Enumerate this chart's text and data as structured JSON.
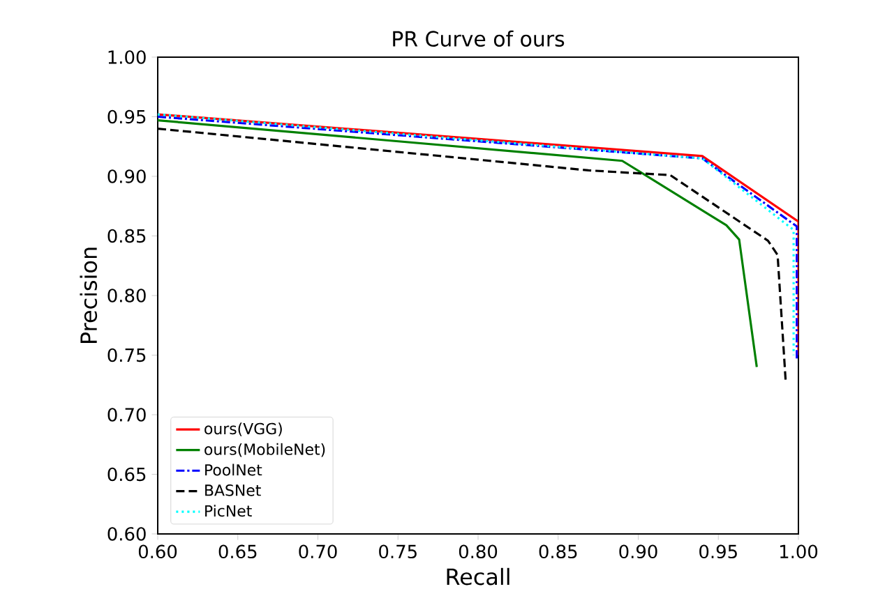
{
  "chart_data": {
    "type": "line",
    "title": "PR Curve of ours",
    "xlabel": "Recall",
    "ylabel": "Precision",
    "xlim": [
      0.6,
      1.0
    ],
    "ylim": [
      0.6,
      1.0
    ],
    "xticks": [
      {
        "value": 0.6,
        "label": "0.60"
      },
      {
        "value": 0.65,
        "label": "0.65"
      },
      {
        "value": 0.7,
        "label": "0.70"
      },
      {
        "value": 0.75,
        "label": "0.75"
      },
      {
        "value": 0.8,
        "label": "0.80"
      },
      {
        "value": 0.85,
        "label": "0.85"
      },
      {
        "value": 0.9,
        "label": "0.90"
      },
      {
        "value": 0.95,
        "label": "0.95"
      },
      {
        "value": 1.0,
        "label": "1.00"
      }
    ],
    "yticks": [
      {
        "value": 0.6,
        "label": "0.60"
      },
      {
        "value": 0.65,
        "label": "0.65"
      },
      {
        "value": 0.7,
        "label": "0.70"
      },
      {
        "value": 0.75,
        "label": "0.75"
      },
      {
        "value": 0.8,
        "label": "0.80"
      },
      {
        "value": 0.85,
        "label": "0.85"
      },
      {
        "value": 0.9,
        "label": "0.90"
      },
      {
        "value": 0.95,
        "label": "0.95"
      },
      {
        "value": 1.0,
        "label": "1.00"
      }
    ],
    "grid": false,
    "legend": "bottom left",
    "marker": "none",
    "series": [
      {
        "name": "ours(VGG)",
        "color": "#ff0000",
        "line_style": "solid",
        "x": [
          0.6,
          0.94,
          1.0,
          1.0
        ],
        "values": [
          0.952,
          0.917,
          0.862,
          0.75
        ]
      },
      {
        "name": "ours(MobileNet)",
        "color": "#008000",
        "line_style": "solid",
        "x": [
          0.6,
          0.89,
          0.955,
          0.963,
          0.974
        ],
        "values": [
          0.947,
          0.913,
          0.859,
          0.847,
          0.74
        ]
      },
      {
        "name": "PoolNet",
        "color": "#0000ff",
        "line_style": "dashdot",
        "x": [
          0.6,
          0.94,
          0.999,
          0.999
        ],
        "values": [
          0.95,
          0.915,
          0.858,
          0.746
        ]
      },
      {
        "name": "BASNet",
        "color": "#000000",
        "line_style": "dashed",
        "x": [
          0.6,
          0.869,
          0.92,
          0.981,
          0.987,
          0.992
        ],
        "values": [
          0.94,
          0.905,
          0.901,
          0.846,
          0.834,
          0.729
        ]
      },
      {
        "name": "PicNet",
        "color": "#00ffff",
        "line_style": "dotted",
        "x": [
          0.6,
          0.94,
          0.997,
          0.997
        ],
        "values": [
          0.952,
          0.915,
          0.855,
          0.75
        ]
      }
    ]
  }
}
